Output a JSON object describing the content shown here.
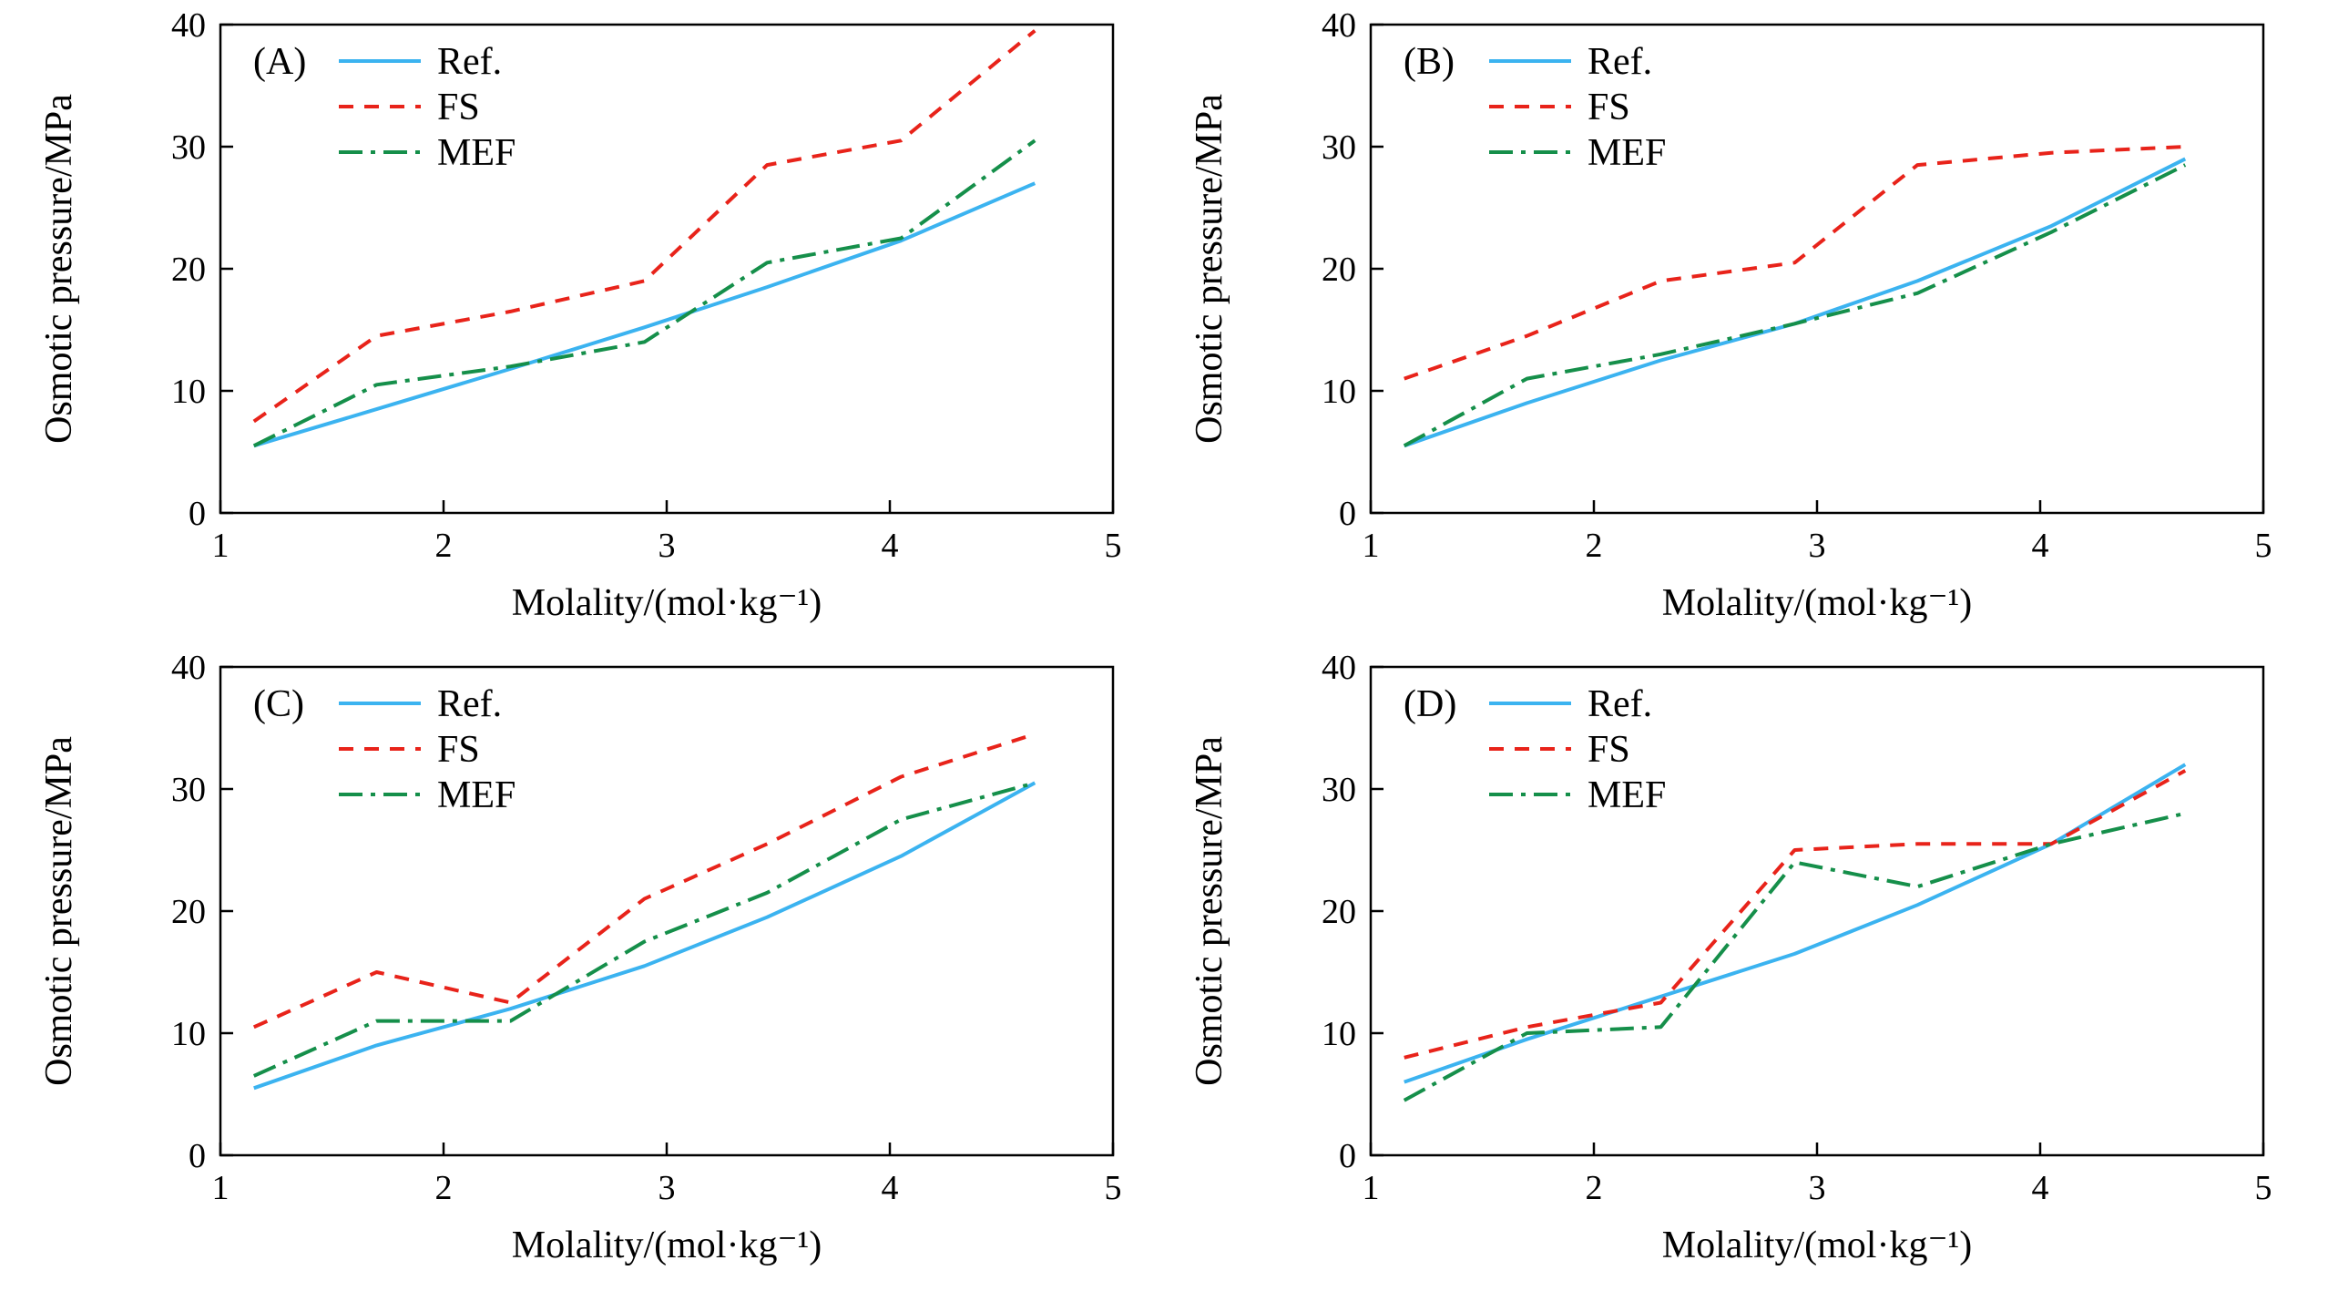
{
  "figure": {
    "background": "#ffffff",
    "line_width": 4,
    "axis_color": "#000000"
  },
  "chart_data": [
    {
      "type": "line",
      "panel_label": "(A)",
      "xlabel": "Molality/(mol·kg⁻¹)",
      "ylabel": "Osmotic pressure/MPa",
      "xlim": [
        1,
        5
      ],
      "ylim": [
        0,
        40
      ],
      "xticks": [
        1,
        2,
        3,
        4,
        5
      ],
      "yticks": [
        0,
        10,
        20,
        30,
        40
      ],
      "grid": false,
      "legend_position": "top-left-inside",
      "x": [
        1.15,
        1.7,
        2.3,
        2.9,
        3.45,
        4.05,
        4.65
      ],
      "series": [
        {
          "name": "Ref.",
          "style": "solid",
          "color": "#3bb3f0",
          "values": [
            5.5,
            8.5,
            11.8,
            15.2,
            18.5,
            22.3,
            27
          ]
        },
        {
          "name": "FS",
          "style": "dashed",
          "color": "#e8231a",
          "values": [
            7.5,
            14.5,
            16.5,
            19,
            28.5,
            30.5,
            39.5
          ]
        },
        {
          "name": "MEF",
          "style": "dashdot",
          "color": "#158f4a",
          "values": [
            5.5,
            10.5,
            12,
            14,
            20.5,
            22.5,
            30.5
          ]
        }
      ]
    },
    {
      "type": "line",
      "panel_label": "(B)",
      "xlabel": "Molality/(mol·kg⁻¹)",
      "ylabel": "Osmotic pressure/MPa",
      "xlim": [
        1,
        5
      ],
      "ylim": [
        0,
        40
      ],
      "xticks": [
        1,
        2,
        3,
        4,
        5
      ],
      "yticks": [
        0,
        10,
        20,
        30,
        40
      ],
      "grid": false,
      "legend_position": "top-left-inside",
      "x": [
        1.15,
        1.7,
        2.3,
        2.9,
        3.45,
        4.05,
        4.65
      ],
      "series": [
        {
          "name": "Ref.",
          "style": "solid",
          "color": "#3bb3f0",
          "values": [
            5.5,
            9,
            12.5,
            15.5,
            19,
            23.5,
            29
          ]
        },
        {
          "name": "FS",
          "style": "dashed",
          "color": "#e8231a",
          "values": [
            11,
            14.5,
            19,
            20.5,
            28.5,
            29.5,
            30
          ]
        },
        {
          "name": "MEF",
          "style": "dashdot",
          "color": "#158f4a",
          "values": [
            5.5,
            11,
            13,
            15.5,
            18,
            23,
            28.5
          ]
        }
      ]
    },
    {
      "type": "line",
      "panel_label": "(C)",
      "xlabel": "Molality/(mol·kg⁻¹)",
      "ylabel": "Osmotic pressure/MPa",
      "xlim": [
        1,
        5
      ],
      "ylim": [
        0,
        40
      ],
      "xticks": [
        1,
        2,
        3,
        4,
        5
      ],
      "yticks": [
        0,
        10,
        20,
        30,
        40
      ],
      "grid": false,
      "legend_position": "top-left-inside",
      "x": [
        1.15,
        1.7,
        2.3,
        2.9,
        3.45,
        4.05,
        4.65
      ],
      "series": [
        {
          "name": "Ref.",
          "style": "solid",
          "color": "#3bb3f0",
          "values": [
            5.5,
            9,
            12,
            15.5,
            19.5,
            24.5,
            30.5
          ]
        },
        {
          "name": "FS",
          "style": "dashed",
          "color": "#e8231a",
          "values": [
            10.5,
            15,
            12.5,
            21,
            25.5,
            31,
            34.5
          ]
        },
        {
          "name": "MEF",
          "style": "dashdot",
          "color": "#158f4a",
          "values": [
            6.5,
            11,
            11,
            17.5,
            21.5,
            27.5,
            30.5
          ]
        }
      ]
    },
    {
      "type": "line",
      "panel_label": "(D)",
      "xlabel": "Molality/(mol·kg⁻¹)",
      "ylabel": "Osmotic pressure/MPa",
      "xlim": [
        1,
        5
      ],
      "ylim": [
        0,
        40
      ],
      "xticks": [
        1,
        2,
        3,
        4,
        5
      ],
      "yticks": [
        0,
        10,
        20,
        30,
        40
      ],
      "grid": false,
      "legend_position": "top-left-inside",
      "x": [
        1.15,
        1.7,
        2.3,
        2.9,
        3.45,
        4.05,
        4.65
      ],
      "series": [
        {
          "name": "Ref.",
          "style": "solid",
          "color": "#3bb3f0",
          "values": [
            6,
            9.5,
            13,
            16.5,
            20.5,
            25.5,
            32
          ]
        },
        {
          "name": "FS",
          "style": "dashed",
          "color": "#e8231a",
          "values": [
            8,
            10.5,
            12.5,
            25,
            25.5,
            25.5,
            31.5
          ]
        },
        {
          "name": "MEF",
          "style": "dashdot",
          "color": "#158f4a",
          "values": [
            4.5,
            10,
            10.5,
            24,
            22,
            25.5,
            28
          ]
        }
      ]
    }
  ]
}
